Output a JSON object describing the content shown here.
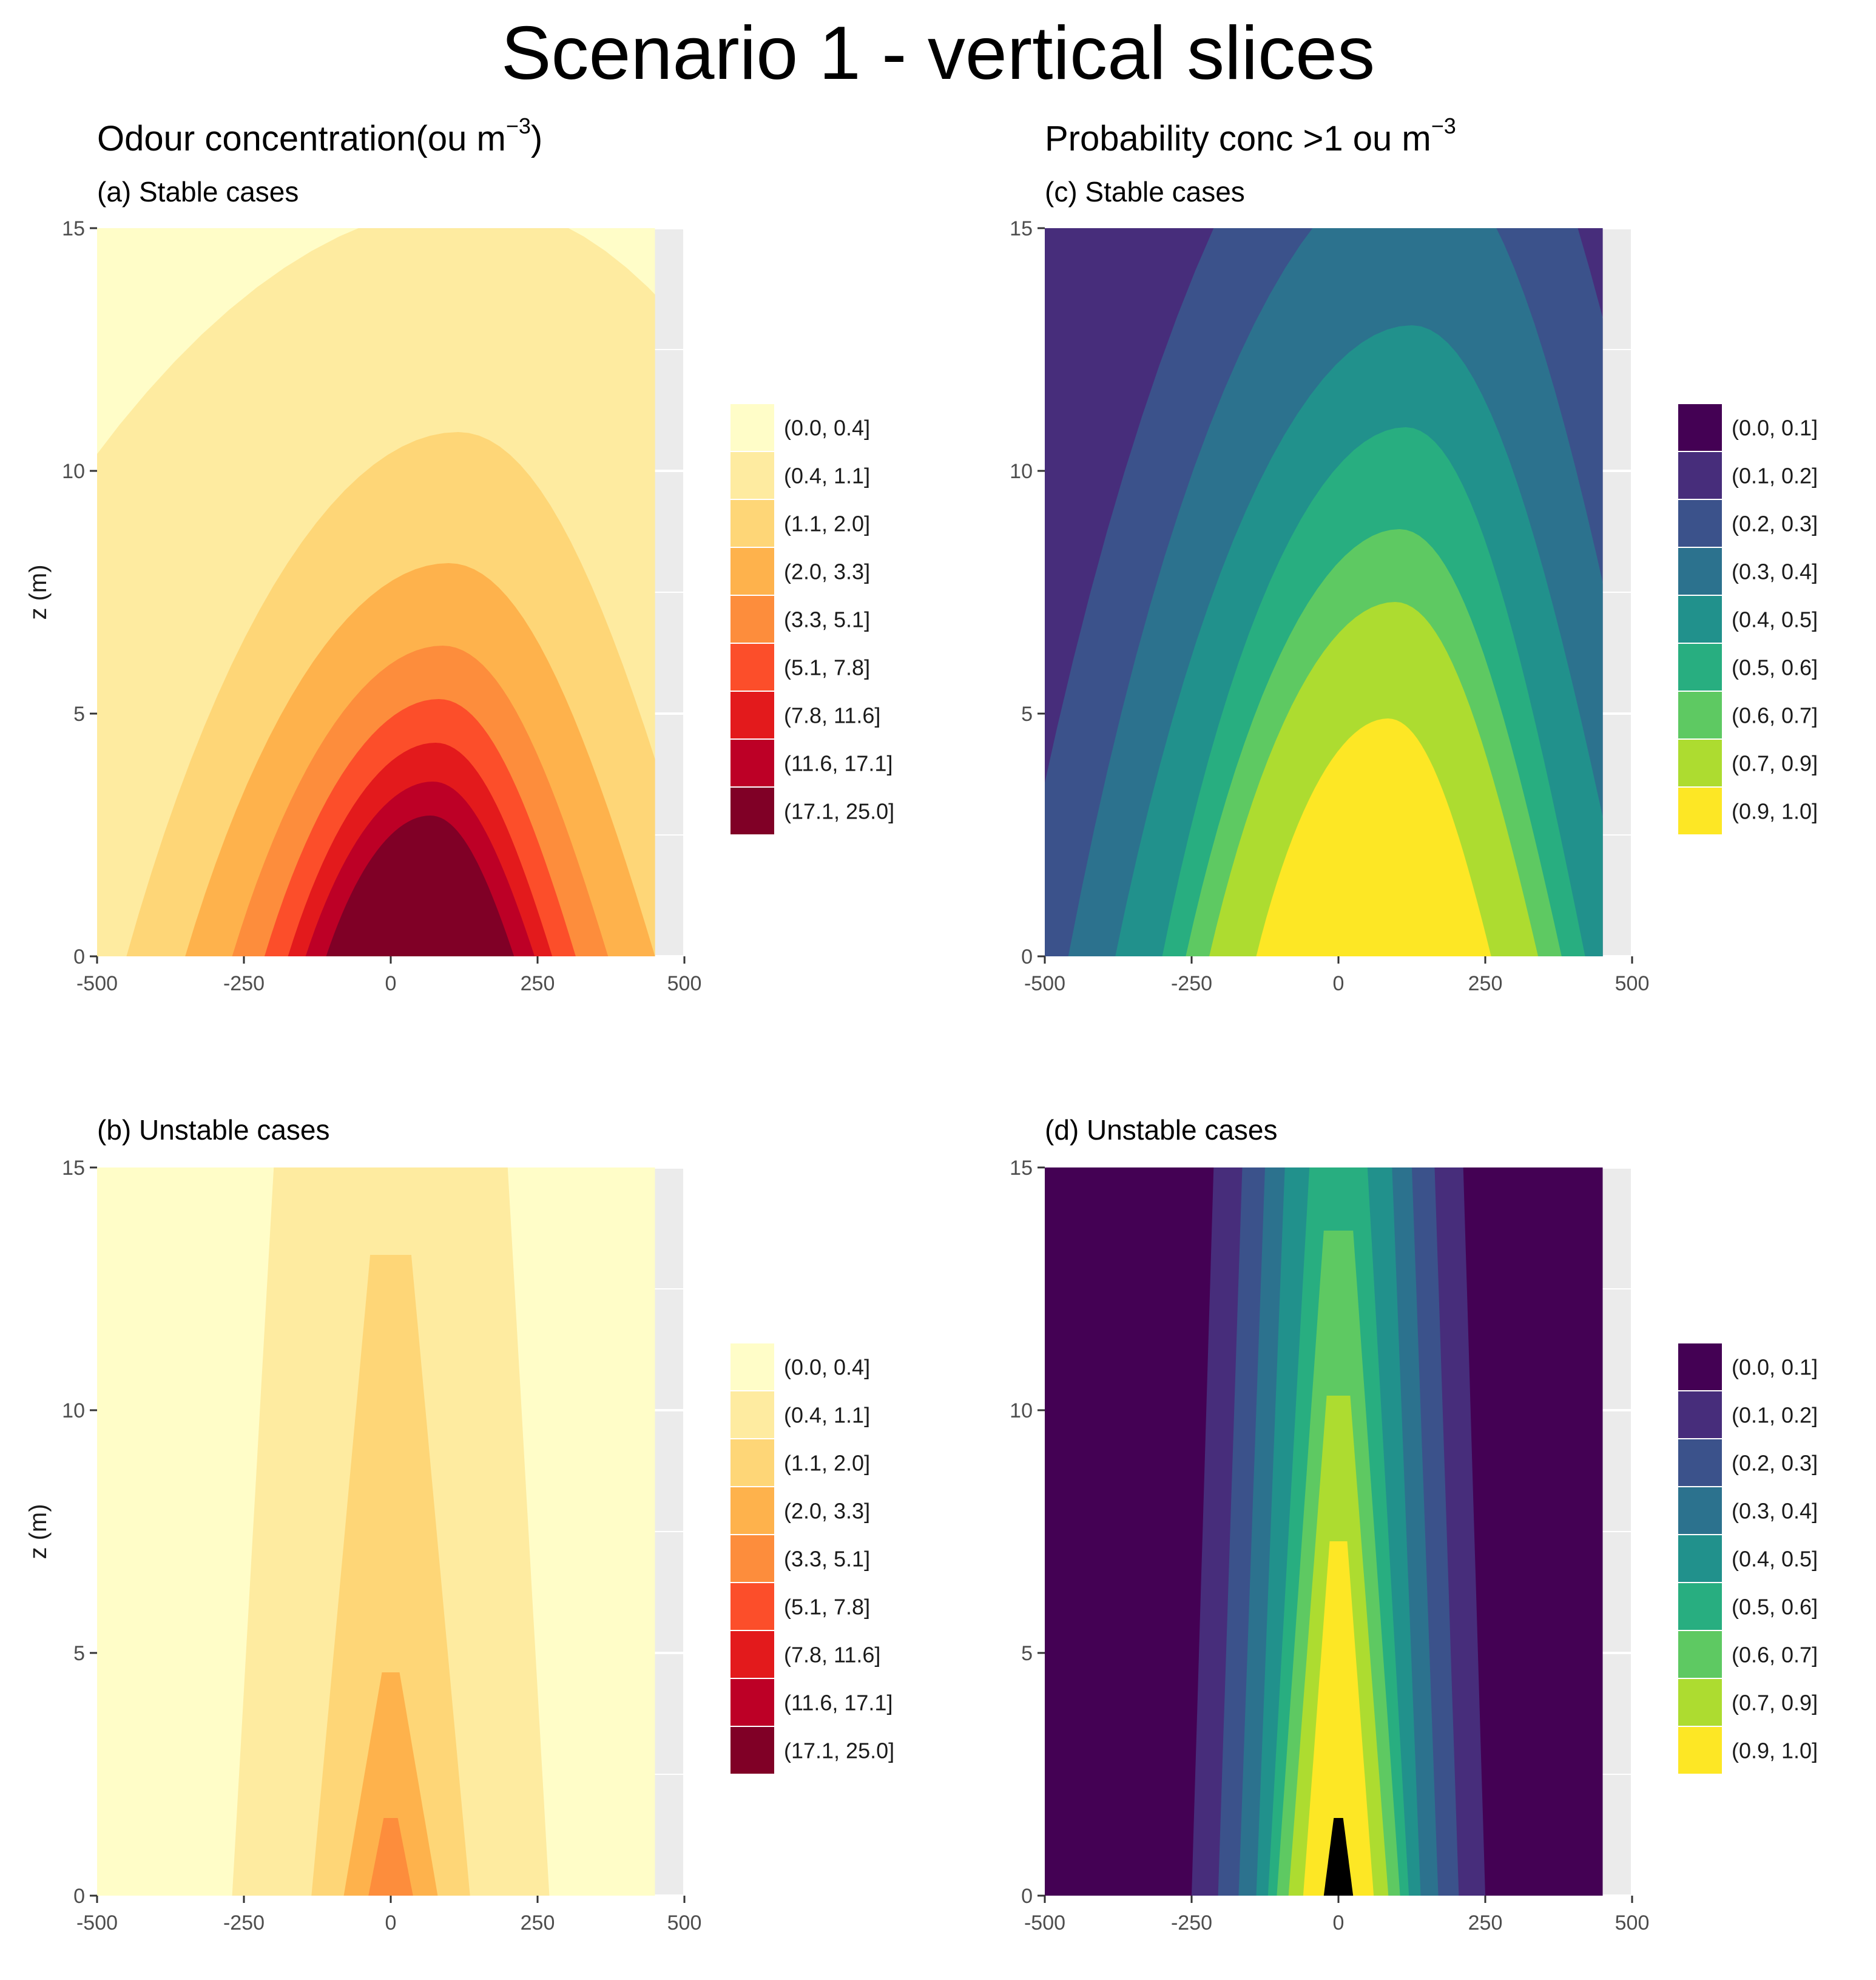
{
  "title": "Scenario 1  - vertical slices",
  "columns": [
    {
      "title": "Odour concentration",
      "unit_prefix": "(ou m",
      "unit_sup": "−3",
      "unit_suffix": ")"
    },
    {
      "title": "Probability conc >1 ou m",
      "unit_prefix": "",
      "unit_sup": "−3",
      "unit_suffix": ""
    }
  ],
  "chart_data": [
    {
      "type": "heatmap",
      "panel": "a",
      "title": "(a) Stable cases",
      "xlabel": "",
      "ylabel": "z (m)",
      "xlim": [
        -500,
        500
      ],
      "ylim": [
        0,
        15
      ],
      "x_ticks": [
        -500,
        -250,
        0,
        250,
        500
      ],
      "y_ticks": [
        0,
        5,
        10,
        15
      ],
      "data_extent": {
        "x": [
          -500,
          450
        ],
        "z": [
          0,
          15
        ]
      },
      "legend": {
        "labels": [
          "(0.0, 0.4]",
          "(0.4, 1.1]",
          "(1.1, 2.0]",
          "(2.0, 3.3]",
          "(3.3, 5.1]",
          "(5.1, 7.8]",
          "(7.8, 11.6]",
          "(11.6, 17.1]",
          "(17.1, 25.0]"
        ],
        "colors": [
          "#fffdc8",
          "#feeba0",
          "#fed677",
          "#feb24c",
          "#fd8d3c",
          "#fc4e2a",
          "#e31a1c",
          "#bd0026",
          "#800026"
        ]
      },
      "plume": {
        "center_x": 50,
        "source_z": 0,
        "tilt_per_m": 6.0,
        "contours": [
          {
            "level": 1,
            "top_z": 15.5,
            "half_width": 1000
          },
          {
            "level": 2,
            "top_z": 10.8,
            "half_width": 500
          },
          {
            "level": 3,
            "top_z": 8.1,
            "half_width": 400
          },
          {
            "level": 4,
            "top_z": 6.4,
            "half_width": 320
          },
          {
            "level": 5,
            "top_z": 5.3,
            "half_width": 265
          },
          {
            "level": 6,
            "top_z": 4.4,
            "half_width": 225
          },
          {
            "level": 7,
            "top_z": 3.6,
            "half_width": 195
          },
          {
            "level": 8,
            "top_z": 2.9,
            "half_width": 160
          }
        ]
      }
    },
    {
      "type": "heatmap",
      "panel": "b",
      "title": "(b) Unstable cases",
      "xlabel": "",
      "ylabel": "z (m)",
      "xlim": [
        -500,
        500
      ],
      "ylim": [
        0,
        15
      ],
      "x_ticks": [
        -500,
        -250,
        0,
        250,
        500
      ],
      "y_ticks": [
        0,
        5,
        10,
        15
      ],
      "data_extent": {
        "x": [
          -500,
          450
        ],
        "z": [
          0,
          15
        ]
      },
      "legend": {
        "labels": [
          "(0.0, 0.4]",
          "(0.4, 1.1]",
          "(1.1, 2.0]",
          "(2.0, 3.3]",
          "(3.3, 5.1]",
          "(5.1, 7.8]",
          "(7.8, 11.6]",
          "(11.6, 17.1]",
          "(17.1, 25.0]"
        ],
        "colors": [
          "#fffdc8",
          "#feeba0",
          "#fed677",
          "#feb24c",
          "#fd8d3c",
          "#fc4e2a",
          "#e31a1c",
          "#bd0026",
          "#800026"
        ]
      },
      "plume": {
        "center_x": 0,
        "source_z": 0,
        "tilt_per_m": 0,
        "contours": [
          {
            "level": 1,
            "top_z": 18.0,
            "half_width_base": 270,
            "half_width_top": 185
          },
          {
            "level": 2,
            "top_z": 13.2,
            "half_width_base": 135,
            "half_width_top": 35
          },
          {
            "level": 3,
            "top_z": 4.6,
            "half_width_base": 80,
            "half_width_top": 15
          },
          {
            "level": 4,
            "top_z": 1.6,
            "half_width_base": 38,
            "half_width_top": 12
          }
        ]
      }
    },
    {
      "type": "heatmap",
      "panel": "c",
      "title": "(c) Stable cases",
      "xlabel": "",
      "ylabel": "",
      "xlim": [
        -500,
        500
      ],
      "ylim": [
        0,
        15
      ],
      "x_ticks": [
        -500,
        -250,
        0,
        250,
        500
      ],
      "y_ticks": [
        0,
        5,
        10,
        15
      ],
      "data_extent": {
        "x": [
          -500,
          450
        ],
        "z": [
          0,
          15
        ]
      },
      "legend": {
        "labels": [
          "(0.0, 0.1]",
          "(0.1, 0.2]",
          "(0.2, 0.3]",
          "(0.3, 0.4]",
          "(0.4, 0.5]",
          "(0.5, 0.6]",
          "(0.6, 0.7]",
          "(0.7, 0.9]",
          "(0.9, 1.0]"
        ],
        "colors": [
          "#440154",
          "#472d7b",
          "#3b528b",
          "#2c728e",
          "#21918c",
          "#28ae80",
          "#5ec962",
          "#addc30",
          "#fde725"
        ]
      },
      "plume": {
        "center_x": 60,
        "source_z": 0,
        "tilt_per_m": 5.0,
        "contours": [
          {
            "level": 1,
            "top_z": 25.0,
            "half_width": 1000
          },
          {
            "level": 2,
            "top_z": 20.0,
            "half_width": 620
          },
          {
            "level": 3,
            "top_z": 16.5,
            "half_width": 520
          },
          {
            "level": 4,
            "top_z": 13.0,
            "half_width": 440
          },
          {
            "level": 5,
            "top_z": 10.9,
            "half_width": 360
          },
          {
            "level": 6,
            "top_z": 8.8,
            "half_width": 320
          },
          {
            "level": 7,
            "top_z": 7.3,
            "half_width": 280
          },
          {
            "level": 8,
            "top_z": 4.9,
            "half_width": 200
          }
        ]
      }
    },
    {
      "type": "heatmap",
      "panel": "d",
      "title": "(d) Unstable cases",
      "xlabel": "",
      "ylabel": "",
      "xlim": [
        -500,
        500
      ],
      "ylim": [
        0,
        15
      ],
      "x_ticks": [
        -500,
        -250,
        0,
        250,
        500
      ],
      "y_ticks": [
        0,
        5,
        10,
        15
      ],
      "data_extent": {
        "x": [
          -500,
          450
        ],
        "z": [
          0,
          15
        ]
      },
      "legend": {
        "labels": [
          "(0.0, 0.1]",
          "(0.1, 0.2]",
          "(0.2, 0.3]",
          "(0.3, 0.4]",
          "(0.4, 0.5]",
          "(0.5, 0.6]",
          "(0.6, 0.7]",
          "(0.7, 0.9]",
          "(0.9, 1.0]"
        ],
        "colors": [
          "#440154",
          "#472d7b",
          "#3b528b",
          "#2c728e",
          "#21918c",
          "#28ae80",
          "#5ec962",
          "#addc30",
          "#fde725"
        ]
      },
      "plume": {
        "center_x": 0,
        "source_z": 0,
        "tilt_per_m": 0,
        "contours": [
          {
            "level": 1,
            "top_z": 20.0,
            "half_width_base": 250,
            "half_width_top": 200
          },
          {
            "level": 2,
            "top_z": 20.0,
            "half_width_base": 205,
            "half_width_top": 150
          },
          {
            "level": 3,
            "top_z": 20.0,
            "half_width_base": 170,
            "half_width_top": 110
          },
          {
            "level": 4,
            "top_z": 20.0,
            "half_width_base": 140,
            "half_width_top": 75
          },
          {
            "level": 5,
            "top_z": 17.0,
            "half_width_base": 120,
            "half_width_top": 40
          },
          {
            "level": 6,
            "top_z": 13.7,
            "half_width_base": 105,
            "half_width_top": 25
          },
          {
            "level": 7,
            "top_z": 10.3,
            "half_width_base": 85,
            "half_width_top": 20
          },
          {
            "level": 8,
            "top_z": 7.3,
            "half_width_base": 60,
            "half_width_top": 15
          },
          {
            "level": 9,
            "top_z": 1.6,
            "half_width_base": 25,
            "half_width_top": 8
          }
        ]
      }
    }
  ]
}
